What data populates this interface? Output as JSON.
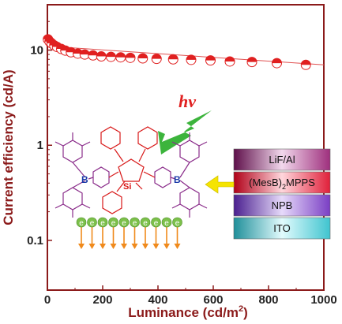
{
  "chart_data": {
    "type": "scatter",
    "xlabel": "Luminance",
    "xlabel_unit_prefix": "(cd/m",
    "xlabel_unit_sup": "2",
    "xlabel_unit_suffix": ")",
    "ylabel": "Current efficiency (cd/A)",
    "xlim": [
      0,
      1000
    ],
    "ylim": [
      0.03,
      30
    ],
    "yscale": "log",
    "grid": false,
    "x_ticks": [
      "0",
      "200",
      "400",
      "600",
      "800",
      "1000"
    ],
    "y_ticks": [
      "0.1",
      "1",
      "10"
    ],
    "series": [
      {
        "marker": "half-filled circle",
        "color": "#e02020",
        "x": [
          2,
          8,
          15,
          25,
          35,
          50,
          65,
          85,
          110,
          135,
          165,
          195,
          230,
          265,
          300,
          345,
          395,
          455,
          520,
          590,
          660,
          740,
          830,
          935
        ],
        "y": [
          13.0,
          12.3,
          11.8,
          11.2,
          10.8,
          10.3,
          9.9,
          9.5,
          9.2,
          9.0,
          8.8,
          8.6,
          8.5,
          8.4,
          8.3,
          8.2,
          8.1,
          8.0,
          7.9,
          7.8,
          7.6,
          7.5,
          7.3,
          7.0
        ]
      }
    ],
    "fit_line": {
      "color": "#e05050",
      "x": [
        0,
        1000
      ],
      "y": [
        11.0,
        7.0
      ]
    }
  },
  "inset": {
    "light_label": "hv",
    "device_layers": [
      {
        "label": "LiF/Al",
        "color": "#9e2f7d"
      },
      {
        "label": "(MesB)",
        "sub": "2",
        "label_tail": "MPPS",
        "color": "#e0203a"
      },
      {
        "label": "NPB",
        "color": "#7a3ec4"
      },
      {
        "label": "ITO",
        "color": "#3fc4cf"
      }
    ],
    "molecule_labels": {
      "boron_left": "B",
      "boron_right": "B",
      "silicon": "Si"
    },
    "electron_symbol": "e",
    "electron_count": 10,
    "colors": {
      "arrow_yellow": "#f5e400",
      "bolt_green": "#3cb43c",
      "electron_green": "#7cc04a",
      "electron_arrow_orange": "#f08a1c",
      "molecule_purple": "#8a2c8a",
      "molecule_red": "#d81818",
      "boron_blue": "#1a3aa8"
    }
  }
}
